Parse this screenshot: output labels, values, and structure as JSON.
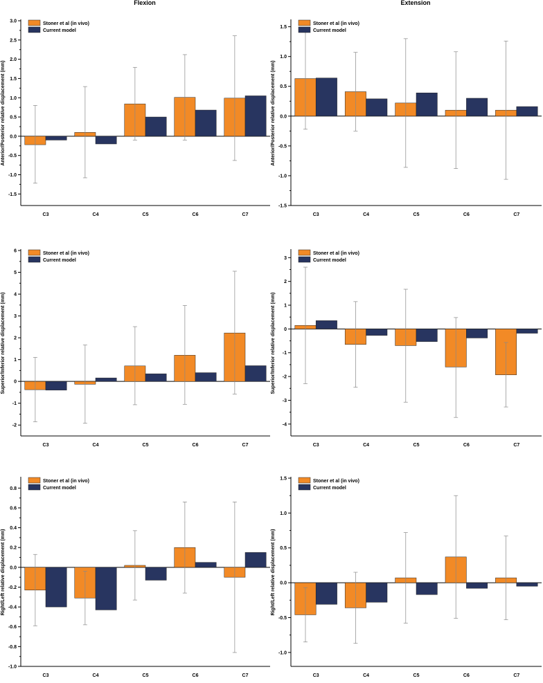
{
  "column_titles": [
    "Flexion",
    "Extension"
  ],
  "colors": {
    "series_a": "#F28A26",
    "series_b": "#283560",
    "axis": "#000000",
    "error_bar": "#888888"
  },
  "chart_data": [
    {
      "type": "bar",
      "col": 0,
      "row": 0,
      "column_title": "Flexion",
      "ylabel": "Anterior/Posterior relative displacement (mm)",
      "categories": [
        "C3",
        "C4",
        "C5",
        "C6",
        "C7"
      ],
      "ylim": [
        -1.8,
        3.0
      ],
      "yticks": [
        -1.5,
        -1.0,
        -0.5,
        0.0,
        0.5,
        1.0,
        1.5,
        2.0,
        2.5,
        3.0
      ],
      "ytick_labels": [
        "-1.5",
        "-1.0",
        "-0.5",
        "0.0",
        "0.5",
        "1.0",
        "1.5",
        "2.0",
        "2.5",
        "3.0"
      ],
      "series": [
        {
          "name": "Stoner et al (in vivo)",
          "values": [
            -0.22,
            0.1,
            0.84,
            1.01,
            0.99
          ],
          "err_low": [
            -1.22,
            -1.08,
            -0.1,
            -0.1,
            -0.63
          ],
          "err_high": [
            0.8,
            1.29,
            1.79,
            2.12,
            2.61
          ]
        },
        {
          "name": "Current model",
          "values": [
            -0.1,
            -0.2,
            0.5,
            0.68,
            1.05
          ]
        }
      ]
    },
    {
      "type": "bar",
      "col": 1,
      "row": 0,
      "column_title": "Extension",
      "ylabel": "Anterior/Posterior relative displacement (mm)",
      "categories": [
        "C3",
        "C4",
        "C5",
        "C6",
        "C7"
      ],
      "ylim": [
        -1.5,
        1.6
      ],
      "yticks": [
        -1.5,
        -1.0,
        -0.5,
        0.0,
        0.5,
        1.0,
        1.5
      ],
      "ytick_labels": [
        "-1.5",
        "-1.0",
        "-0.5",
        "0.0",
        "0.5",
        "1.0",
        "1.5"
      ],
      "series": [
        {
          "name": "Stoner et al (in vivo)",
          "values": [
            0.63,
            0.41,
            0.22,
            0.1,
            0.1
          ],
          "err_low": [
            -0.22,
            -0.25,
            -0.86,
            -0.88,
            -1.06
          ],
          "err_high": [
            1.47,
            1.07,
            1.3,
            1.08,
            1.26
          ]
        },
        {
          "name": "Current model",
          "values": [
            0.64,
            0.29,
            0.39,
            0.3,
            0.16
          ]
        }
      ]
    },
    {
      "type": "bar",
      "col": 0,
      "row": 1,
      "ylabel": "Superior/Inferior relative displacement (mm)",
      "categories": [
        "C3",
        "C4",
        "C5",
        "C6",
        "C7"
      ],
      "ylim": [
        -2.5,
        6.0
      ],
      "yticks": [
        -2,
        -1,
        0,
        1,
        2,
        3,
        4,
        5,
        6
      ],
      "ytick_labels": [
        "-2",
        "-1",
        "0",
        "1",
        "2",
        "3",
        "4",
        "5",
        "6"
      ],
      "series": [
        {
          "name": "Stoner et al (in vivo)",
          "values": [
            -0.38,
            -0.13,
            0.71,
            1.2,
            2.22
          ],
          "err_low": [
            -1.85,
            -1.92,
            -1.07,
            -1.05,
            -0.58
          ],
          "err_high": [
            1.1,
            1.67,
            2.51,
            3.48,
            5.05
          ]
        },
        {
          "name": "Current model",
          "values": [
            -0.4,
            0.16,
            0.35,
            0.4,
            0.72
          ]
        }
      ]
    },
    {
      "type": "bar",
      "col": 1,
      "row": 1,
      "ylabel": "Superior/Inferior relative displacement (mm)",
      "categories": [
        "C3",
        "C4",
        "C5",
        "C6",
        "C7"
      ],
      "ylim": [
        -4.5,
        3.3
      ],
      "yticks": [
        -4,
        -3,
        -2,
        -1,
        0,
        1,
        2,
        3
      ],
      "ytick_labels": [
        "-4",
        "-3",
        "-2",
        "-1",
        "0",
        "1",
        "2",
        "3"
      ],
      "series": [
        {
          "name": "Stoner et al (in vivo)",
          "values": [
            0.15,
            -0.65,
            -0.7,
            -1.6,
            -1.93
          ],
          "err_low": [
            -2.3,
            -2.45,
            -3.08,
            -3.72,
            -3.28
          ],
          "err_high": [
            2.6,
            1.15,
            1.67,
            0.48,
            -0.57
          ]
        },
        {
          "name": "Current model",
          "values": [
            0.35,
            -0.27,
            -0.53,
            -0.38,
            -0.18
          ]
        }
      ]
    },
    {
      "type": "bar",
      "col": 0,
      "row": 2,
      "ylabel": "Right/Left relative displacement (mm)",
      "categories": [
        "C3",
        "C4",
        "C5",
        "C6",
        "C7"
      ],
      "ylim": [
        -1.0,
        0.9
      ],
      "yticks": [
        -1.0,
        -0.8,
        -0.6,
        -0.4,
        -0.2,
        0.0,
        0.2,
        0.4,
        0.6,
        0.8
      ],
      "ytick_labels": [
        "-1.0",
        "-0.8",
        "-0.6",
        "-0.4",
        "-0.2",
        "0.0",
        "0.2",
        "0.4",
        "0.6",
        "0.8"
      ],
      "series": [
        {
          "name": "Stoner et al (in vivo)",
          "values": [
            -0.23,
            -0.31,
            0.02,
            0.2,
            -0.1
          ],
          "err_low": [
            -0.59,
            -0.58,
            -0.33,
            -0.26,
            -0.86
          ],
          "err_high": [
            0.13,
            -0.04,
            0.37,
            0.66,
            0.66
          ]
        },
        {
          "name": "Current model",
          "values": [
            -0.4,
            -0.43,
            -0.13,
            0.05,
            0.15
          ]
        }
      ]
    },
    {
      "type": "bar",
      "col": 1,
      "row": 2,
      "ylabel": "Right/Left relative displacement (mm)",
      "categories": [
        "C3",
        "C4",
        "C5",
        "C6",
        "C7"
      ],
      "ylim": [
        -1.2,
        1.5
      ],
      "yticks": [
        -1.0,
        -0.5,
        0.0,
        0.5,
        1.0,
        1.5
      ],
      "ytick_labels": [
        "-1.0",
        "-0.5",
        "0.0",
        "0.5",
        "1.0",
        "1.5"
      ],
      "series": [
        {
          "name": "Stoner et al (in vivo)",
          "values": [
            -0.46,
            -0.36,
            0.07,
            0.37,
            0.07
          ],
          "err_low": [
            -0.85,
            -0.87,
            -0.58,
            -0.51,
            -0.53
          ],
          "err_high": [
            -0.07,
            0.15,
            0.72,
            1.25,
            0.67
          ]
        },
        {
          "name": "Current model",
          "values": [
            -0.31,
            -0.28,
            -0.17,
            -0.08,
            -0.05
          ]
        }
      ]
    }
  ]
}
